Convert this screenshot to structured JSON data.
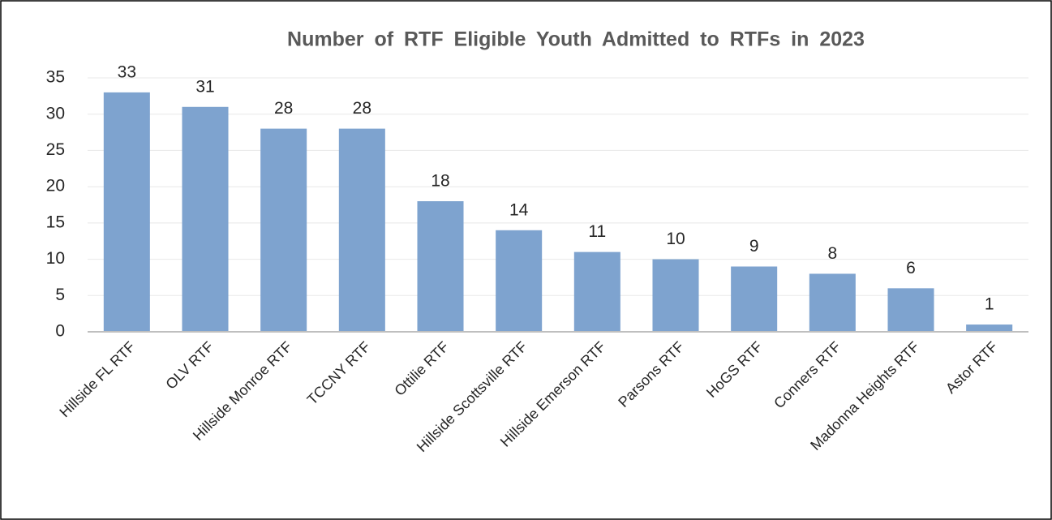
{
  "chart_data": {
    "type": "bar",
    "title": "Number of RTF Eligible Youth Admitted to RTFs in 2023",
    "categories": [
      "Hillside FL RTF",
      "OLV RTF",
      "Hillside Monroe RTF",
      "TCCNY RTF",
      "Ottilie RTF",
      "Hillside Scottsville RTF",
      "Hillside Emerson RTF",
      "Parsons RTF",
      "HoGS RTF",
      "Conners RTF",
      "Madonna Heights RTF",
      "Astor RTF"
    ],
    "values": [
      33,
      31,
      28,
      28,
      18,
      14,
      11,
      10,
      9,
      8,
      6,
      1
    ],
    "color": "#7ea3cf",
    "ylim": [
      0,
      35
    ],
    "yticks": [
      0,
      5,
      10,
      15,
      20,
      25,
      30,
      35
    ],
    "grid": true
  }
}
